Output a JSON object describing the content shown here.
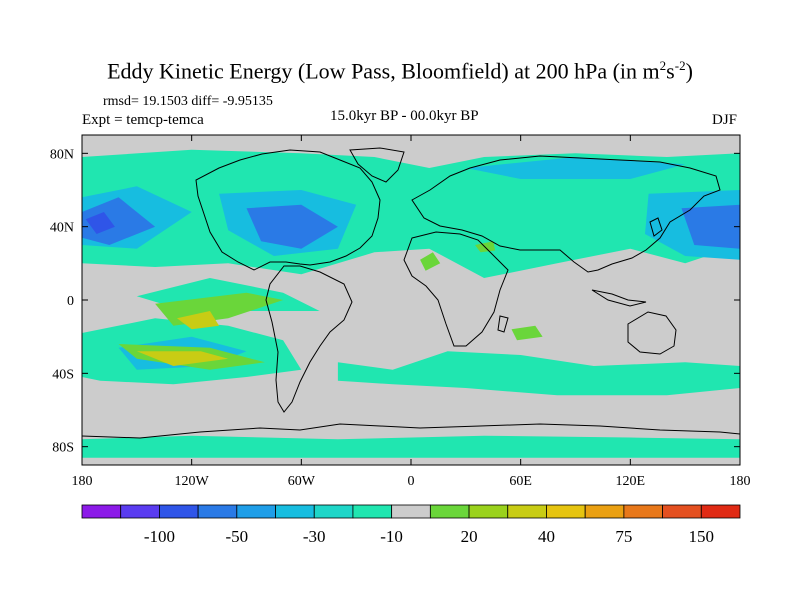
{
  "title": {
    "main": "Eddy Kinetic Energy (Low Pass, Bloomfield) at 200 hPa (in m",
    "sup1": "2",
    "mid": "s",
    "sup2": "-2",
    "end": ")"
  },
  "stats": "rmsd= 19.1503 diff= -9.95135",
  "experiment": "Expt = temcp-temca",
  "center_label": "15.0kyr BP - 00.0kyr BP",
  "season": "DJF",
  "chart_data": {
    "type": "heatmap",
    "projection": "cylindrical-equidistant",
    "title": "Eddy Kinetic Energy (Low Pass, Bloomfield) at 200 hPa (in m2s-2)",
    "xlim": [
      -180,
      180
    ],
    "ylim": [
      -90,
      90
    ],
    "x_ticks": [
      {
        "value": -180,
        "label": "180"
      },
      {
        "value": -120,
        "label": "120W"
      },
      {
        "value": -60,
        "label": "60W"
      },
      {
        "value": 0,
        "label": "0"
      },
      {
        "value": 60,
        "label": "60E"
      },
      {
        "value": 120,
        "label": "120E"
      },
      {
        "value": 180,
        "label": "180"
      }
    ],
    "y_ticks": [
      {
        "value": 80,
        "label": "80N"
      },
      {
        "value": 40,
        "label": "40N"
      },
      {
        "value": 0,
        "label": "0"
      },
      {
        "value": -40,
        "label": "40S"
      },
      {
        "value": -80,
        "label": "80S"
      }
    ],
    "colorbar": {
      "colors": [
        "#8c1ae8",
        "#5a3cf0",
        "#2f55e8",
        "#2a7ae6",
        "#1f9ee8",
        "#17bde0",
        "#1ed6c8",
        "#20e6b0",
        "#cccccc",
        "#6ad63a",
        "#9ad21c",
        "#c8cc14",
        "#e6c410",
        "#eaa012",
        "#e8781a",
        "#e45020",
        "#e02a14"
      ],
      "labels": [
        {
          "after_box": 2,
          "text": "-100"
        },
        {
          "after_box": 4,
          "text": "-50"
        },
        {
          "after_box": 6,
          "text": "-30"
        },
        {
          "after_box": 8,
          "text": "-10"
        },
        {
          "after_box": 10,
          "text": "20"
        },
        {
          "after_box": 12,
          "text": "40"
        },
        {
          "after_box": 14,
          "text": "75"
        },
        {
          "after_box": 16,
          "text": "150"
        }
      ]
    },
    "regions": [
      {
        "level": -10,
        "color": "#20e6b0",
        "desc": "NH mid-latitudes",
        "poly": [
          [
            -180,
            78
          ],
          [
            -120,
            82
          ],
          [
            -60,
            80
          ],
          [
            -20,
            78
          ],
          [
            10,
            72
          ],
          [
            40,
            78
          ],
          [
            90,
            80
          ],
          [
            140,
            78
          ],
          [
            180,
            80
          ],
          [
            180,
            30
          ],
          [
            150,
            20
          ],
          [
            120,
            28
          ],
          [
            80,
            20
          ],
          [
            40,
            12
          ],
          [
            10,
            28
          ],
          [
            -20,
            26
          ],
          [
            -60,
            14
          ],
          [
            -100,
            20
          ],
          [
            -140,
            18
          ],
          [
            -180,
            20
          ]
        ]
      },
      {
        "level": -10,
        "color": "#20e6b0",
        "desc": "tropical east Pacific",
        "poly": [
          [
            -150,
            2
          ],
          [
            -110,
            12
          ],
          [
            -70,
            4
          ],
          [
            -50,
            -6
          ],
          [
            -90,
            -6
          ],
          [
            -130,
            -4
          ]
        ]
      },
      {
        "level": -10,
        "color": "#20e6b0",
        "desc": "SH Pacific band",
        "poly": [
          [
            -180,
            -18
          ],
          [
            -140,
            -10
          ],
          [
            -100,
            -14
          ],
          [
            -70,
            -22
          ],
          [
            -60,
            -38
          ],
          [
            -90,
            -42
          ],
          [
            -130,
            -46
          ],
          [
            -170,
            -44
          ],
          [
            -180,
            -42
          ]
        ]
      },
      {
        "level": -10,
        "color": "#20e6b0",
        "desc": "SH Atlantic-Indian band",
        "poly": [
          [
            -40,
            -34
          ],
          [
            -10,
            -38
          ],
          [
            20,
            -28
          ],
          [
            60,
            -30
          ],
          [
            100,
            -36
          ],
          [
            150,
            -34
          ],
          [
            180,
            -36
          ],
          [
            180,
            -48
          ],
          [
            140,
            -52
          ],
          [
            80,
            -52
          ],
          [
            30,
            -48
          ],
          [
            -10,
            -46
          ],
          [
            -40,
            -44
          ]
        ]
      },
      {
        "level": -10,
        "color": "#20e6b0",
        "desc": "Southern Ocean near Antarctica",
        "poly": [
          [
            -180,
            -76
          ],
          [
            -120,
            -74
          ],
          [
            -40,
            -76
          ],
          [
            40,
            -74
          ],
          [
            120,
            -75
          ],
          [
            180,
            -76
          ],
          [
            180,
            -86
          ],
          [
            -180,
            -86
          ]
        ]
      },
      {
        "level": -30,
        "color": "#17bde0",
        "desc": "North Pacific outer",
        "poly": [
          [
            -180,
            56
          ],
          [
            -150,
            62
          ],
          [
            -120,
            48
          ],
          [
            -150,
            28
          ],
          [
            -180,
            30
          ]
        ]
      },
      {
        "level": -30,
        "color": "#17bde0",
        "desc": "North Atlantic outer",
        "poly": [
          [
            -105,
            58
          ],
          [
            -60,
            60
          ],
          [
            -30,
            52
          ],
          [
            -40,
            28
          ],
          [
            -75,
            24
          ],
          [
            -100,
            38
          ]
        ]
      },
      {
        "level": -30,
        "color": "#17bde0",
        "desc": "Asia/West Pacific outer",
        "poly": [
          [
            130,
            58
          ],
          [
            180,
            60
          ],
          [
            180,
            22
          ],
          [
            150,
            24
          ],
          [
            128,
            36
          ]
        ]
      },
      {
        "level": -30,
        "color": "#17bde0",
        "desc": "Arctic Eurasia",
        "poly": [
          [
            30,
            72
          ],
          [
            90,
            78
          ],
          [
            150,
            74
          ],
          [
            120,
            66
          ],
          [
            60,
            66
          ]
        ]
      },
      {
        "level": -30,
        "color": "#17bde0",
        "desc": "South Pacific",
        "poly": [
          [
            -160,
            -26
          ],
          [
            -120,
            -20
          ],
          [
            -90,
            -28
          ],
          [
            -110,
            -36
          ],
          [
            -150,
            -38
          ]
        ]
      },
      {
        "level": -50,
        "color": "#2a7ae6",
        "desc": "North Pacific core",
        "poly": [
          [
            -180,
            48
          ],
          [
            -160,
            56
          ],
          0,
          [
            -140,
            40
          ],
          [
            -165,
            30
          ],
          [
            -180,
            34
          ]
        ]
      },
      {
        "level": -50,
        "color": "#2a7ae6",
        "desc": "North Atlantic core",
        "poly": [
          [
            -90,
            50
          ],
          [
            -60,
            52
          ],
          [
            -40,
            40
          ],
          [
            -60,
            28
          ],
          [
            -82,
            32
          ]
        ]
      },
      {
        "level": -50,
        "color": "#2a7ae6",
        "desc": "West Pacific core",
        "poly": [
          [
            148,
            50
          ],
          [
            180,
            52
          ],
          [
            180,
            28
          ],
          [
            155,
            30
          ]
        ]
      },
      {
        "level": -100,
        "color": "#2f55e8",
        "desc": "North Pacific darkest",
        "poly": [
          [
            -178,
            44
          ],
          [
            -168,
            48
          ],
          [
            -162,
            40
          ],
          [
            -172,
            36
          ]
        ]
      }
    ],
    "positive_regions": [
      {
        "level": 20,
        "color": "#6ad63a",
        "desc": "SE Pacific upper",
        "poly": [
          [
            -140,
            -2
          ],
          [
            -90,
            4
          ],
          [
            -70,
            0
          ],
          [
            -100,
            -10
          ],
          [
            -130,
            -14
          ]
        ]
      },
      {
        "level": 40,
        "color": "#c8cc14",
        "desc": "SE Pacific core",
        "poly": [
          [
            -128,
            -10
          ],
          [
            -110,
            -6
          ],
          [
            -105,
            -14
          ],
          [
            -120,
            -16
          ]
        ]
      },
      {
        "level": 20,
        "color": "#6ad63a",
        "desc": "South Pacific 30S",
        "poly": [
          [
            -160,
            -24
          ],
          [
            -110,
            -26
          ],
          [
            -80,
            -34
          ],
          [
            -110,
            -38
          ],
          [
            -150,
            -32
          ]
        ]
      },
      {
        "level": 40,
        "color": "#c8cc14",
        "desc": "South Pacific 30S core",
        "poly": [
          [
            -150,
            -28
          ],
          [
            -115,
            -28
          ],
          [
            -100,
            -32
          ],
          [
            -130,
            -36
          ]
        ]
      },
      {
        "level": 20,
        "color": "#6ad63a",
        "desc": "North Africa patch",
        "poly": [
          [
            5,
            22
          ],
          [
            12,
            26
          ],
          [
            16,
            20
          ],
          [
            8,
            16
          ]
        ]
      },
      {
        "level": 20,
        "color": "#6ad63a",
        "desc": "Indian Ocean patch",
        "poly": [
          [
            55,
            -16
          ],
          [
            68,
            -14
          ],
          [
            72,
            -20
          ],
          [
            58,
            -22
          ]
        ]
      },
      {
        "level": 20,
        "color": "#6ad63a",
        "desc": "Arabia patch",
        "poly": [
          [
            35,
            30
          ],
          [
            45,
            32
          ],
          [
            46,
            27
          ],
          [
            38,
            26
          ]
        ]
      }
    ]
  }
}
